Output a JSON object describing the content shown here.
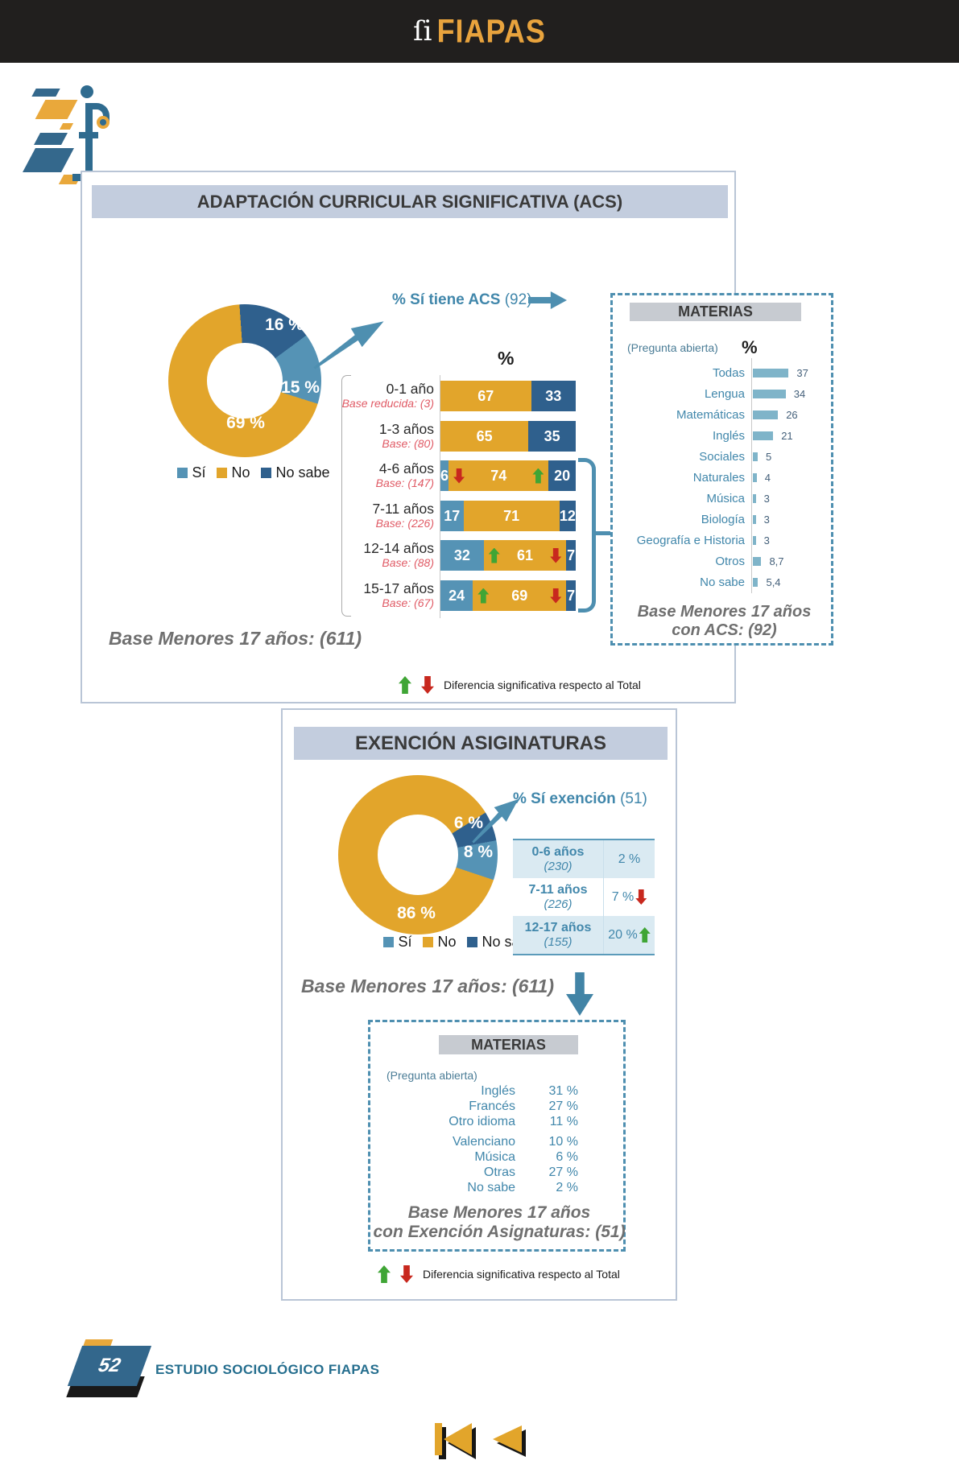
{
  "colors": {
    "accent_orange": "#e2a52b",
    "dark_blue": "#2f608d",
    "light_blue": "#5593b5",
    "teal_text": "#4187ab",
    "red_note": "#e05a65",
    "green_sig": "#3fa535",
    "red_sig": "#c8281e",
    "gray_note": "#6f6f6f",
    "panel_title_bg": "#c3cdde",
    "materias_header_bg": "#c7cbd1",
    "table_row_bg": "#daeaf2",
    "top_bar": "#211f1e",
    "brand_orange": "#e8a33d"
  },
  "top_bar": {
    "brand": "FIAPAS"
  },
  "panel1": {
    "title": "ADAPTACIÓN CURRICULAR SIGNIFICATIVA (ACS)",
    "donut": {
      "si": 15,
      "no": 69,
      "ns": 16,
      "si_label": "15 %",
      "no_label": "69 %",
      "ns_label": "16 %"
    },
    "legend": {
      "si": "Sí",
      "no": "No",
      "ns": "No sabe"
    },
    "callout_bold": "% Sí tiene ACS",
    "callout_count": "(92)",
    "pct_axis": "%",
    "rows": [
      {
        "label": "0-1 año",
        "base": "Base reducida: (3)",
        "si": 0,
        "no": 67,
        "ns": 33,
        "si_text": "",
        "no_text": "67",
        "ns_text": "33"
      },
      {
        "label": "1-3 años",
        "base": "Base: (80)",
        "si": 0,
        "no": 65,
        "ns": 35,
        "si_text": "",
        "no_text": "65",
        "ns_text": "35"
      },
      {
        "label": "4-6 años",
        "base": "Base: (147)",
        "si": 6,
        "no": 74,
        "ns": 20,
        "si_text": "6",
        "no_text": "74",
        "ns_text": "20",
        "si_sig": "down",
        "no_sig": "up"
      },
      {
        "label": "7-11 años",
        "base": "Base: (226)",
        "si": 17,
        "no": 71,
        "ns": 12,
        "si_text": "17",
        "no_text": "71",
        "ns_text": "12"
      },
      {
        "label": "12-14 años",
        "base": "Base: (88)",
        "si": 32,
        "no": 61,
        "ns": 7,
        "si_text": "32",
        "no_text": "61",
        "ns_text": "7",
        "si_sig": "up",
        "ns_sig": "down"
      },
      {
        "label": "15-17 años",
        "base": "Base: (67)",
        "si": 24,
        "no": 69,
        "ns": 7,
        "si_text": "24",
        "no_text": "69",
        "ns_text": "7",
        "si_sig": "up",
        "ns_sig": "down"
      }
    ],
    "materias": {
      "title": "MATERIAS",
      "question": "(Pregunta abierta)",
      "pct_axis": "%",
      "items": [
        {
          "label": "Todas",
          "value": 37,
          "text": "37"
        },
        {
          "label": "Lengua",
          "value": 34,
          "text": "34"
        },
        {
          "label": "Matemáticas",
          "value": 26,
          "text": "26"
        },
        {
          "label": "Inglés",
          "value": 21,
          "text": "21"
        },
        {
          "label": "Sociales",
          "value": 5,
          "text": "5"
        },
        {
          "label": "Naturales",
          "value": 4,
          "text": "4"
        },
        {
          "label": "Música",
          "value": 3,
          "text": "3"
        },
        {
          "label": "Biología",
          "value": 3,
          "text": "3"
        },
        {
          "label": "Geografía e Historia",
          "value": 3,
          "text": "3"
        },
        {
          "label": "Otros",
          "value": 8.7,
          "text": "8,7"
        },
        {
          "label": "No sabe",
          "value": 5.4,
          "text": "5,4"
        }
      ],
      "base_line1": "Base Menores 17 años",
      "base_line2": "con ACS: (92)"
    },
    "base_note": "Base Menores 17 años: (611)",
    "sig_note": "Diferencia significativa respecto al Total"
  },
  "panel2": {
    "title": "EXENCIÓN ASIGINATURAS",
    "donut": {
      "si": 8,
      "no": 86,
      "ns": 6,
      "si_label": "8 %",
      "no_label": "86 %",
      "ns_label": "6 %"
    },
    "legend": {
      "si": "Sí",
      "no": "No",
      "ns": "No sabe"
    },
    "callout_bold": "% Sí exención",
    "callout_count": "(51)",
    "table": [
      {
        "age": "0-6 años",
        "base": "(230)",
        "value": "2 %",
        "sig": ""
      },
      {
        "age": "7-11 años",
        "base": "(226)",
        "value": "7 %",
        "sig": "down"
      },
      {
        "age": "12-17 años",
        "base": "(155)",
        "value": "20 %",
        "sig": "up"
      }
    ],
    "base_note": "Base Menores 17 años:  (611)",
    "materias": {
      "title": "MATERIAS",
      "question": "(Pregunta abierta)",
      "items": [
        {
          "label": "Inglés",
          "value": "31 %"
        },
        {
          "label": "Francés",
          "value": "27 %"
        },
        {
          "label": "Otro idioma",
          "value": "11 %"
        },
        {
          "label": "Valenciano",
          "value": "10 %"
        },
        {
          "label": "Música",
          "value": "6 %"
        },
        {
          "label": "Otras",
          "value": "27 %"
        },
        {
          "label": "No sabe",
          "value": "2 %"
        }
      ],
      "base_line1": "Base Menores 17 años",
      "base_line2": "con Exención Asignaturas: (51)"
    },
    "sig_note": "Diferencia significativa respecto al Total"
  },
  "footer": {
    "page": "52",
    "label": "ESTUDIO SOCIOLÓGICO FIAPAS"
  },
  "chart_data": [
    {
      "type": "pie",
      "title": "Adaptación Curricular Significativa (ACS)",
      "labels": [
        "Sí",
        "No",
        "No sabe"
      ],
      "values": [
        15,
        69,
        16
      ],
      "unit": "%",
      "base": 611
    },
    {
      "type": "bar",
      "stacked": true,
      "title": "ACS por edad (%)",
      "categories": [
        "0-1 año",
        "1-3 años",
        "4-6 años",
        "7-11 años",
        "12-14 años",
        "15-17 años"
      ],
      "bases": [
        3,
        80,
        147,
        226,
        88,
        67
      ],
      "series": [
        {
          "name": "Sí",
          "values": [
            0,
            0,
            6,
            17,
            32,
            24
          ]
        },
        {
          "name": "No",
          "values": [
            67,
            65,
            74,
            71,
            61,
            69
          ]
        },
        {
          "name": "No sabe",
          "values": [
            33,
            35,
            20,
            12,
            7,
            7
          ]
        }
      ],
      "significance": [
        {},
        {},
        {
          "Sí": "down",
          "No": "up"
        },
        {},
        {
          "Sí": "up",
          "No sabe": "down"
        },
        {
          "Sí": "up",
          "No sabe": "down"
        }
      ]
    },
    {
      "type": "bar",
      "title": "Materias con ACS (%)",
      "categories": [
        "Todas",
        "Lengua",
        "Matemáticas",
        "Inglés",
        "Sociales",
        "Naturales",
        "Música",
        "Biología",
        "Geografía e Historia",
        "Otros",
        "No sabe"
      ],
      "values": [
        37,
        34,
        26,
        21,
        5,
        4,
        3,
        3,
        3,
        8.7,
        5.4
      ],
      "base": 92
    },
    {
      "type": "pie",
      "title": "Exención Asignaturas",
      "labels": [
        "Sí",
        "No",
        "No sabe"
      ],
      "values": [
        8,
        86,
        6
      ],
      "unit": "%",
      "base": 611
    },
    {
      "type": "table",
      "title": "% Sí exención por edad",
      "rows": [
        [
          "0-6 años (230)",
          "2 %"
        ],
        [
          "7-11 años (226)",
          "7 %"
        ],
        [
          "12-17 años (155)",
          "20 %"
        ]
      ]
    },
    {
      "type": "table",
      "title": "Materias con Exención (%)",
      "rows": [
        [
          "Inglés",
          "31 %"
        ],
        [
          "Francés",
          "27 %"
        ],
        [
          "Otro idioma",
          "11 %"
        ],
        [
          "Valenciano",
          "10 %"
        ],
        [
          "Música",
          "6 %"
        ],
        [
          "Otras",
          "27 %"
        ],
        [
          "No sabe",
          "2 %"
        ]
      ],
      "base": 51
    }
  ]
}
